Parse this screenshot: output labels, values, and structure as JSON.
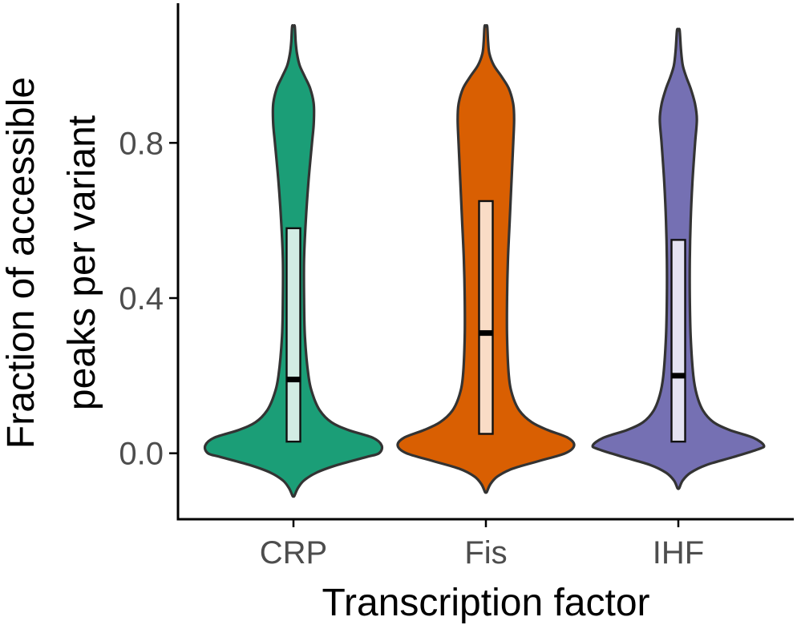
{
  "chart_data": {
    "type": "violin",
    "xlabel": "Transcription factor",
    "ylabel_lines": [
      "Fraction of accessible",
      "peaks per variant"
    ],
    "categories": [
      "CRP",
      "Fis",
      "IHF"
    ],
    "yticks": [
      0.0,
      0.4,
      0.8
    ],
    "ytick_labels": [
      "0.0",
      "0.4",
      "0.8"
    ],
    "ylim": [
      -0.17,
      1.16
    ],
    "grid": false,
    "legend": "none",
    "series": [
      {
        "category": "CRP",
        "color": "#1b9e77",
        "box_fill": "#d2ece4",
        "min": -0.11,
        "max": 1.1,
        "q1": 0.03,
        "median": 0.19,
        "q3": 0.58,
        "density": [
          [
            -0.11,
            0.01
          ],
          [
            -0.09,
            0.05
          ],
          [
            -0.07,
            0.12
          ],
          [
            -0.05,
            0.26
          ],
          [
            -0.03,
            0.5
          ],
          [
            -0.01,
            0.82
          ],
          [
            0.0,
            0.97
          ],
          [
            0.02,
            1.0
          ],
          [
            0.04,
            0.9
          ],
          [
            0.06,
            0.62
          ],
          [
            0.08,
            0.43
          ],
          [
            0.11,
            0.3
          ],
          [
            0.15,
            0.22
          ],
          [
            0.2,
            0.17
          ],
          [
            0.3,
            0.13
          ],
          [
            0.4,
            0.12
          ],
          [
            0.5,
            0.12
          ],
          [
            0.6,
            0.14
          ],
          [
            0.7,
            0.17
          ],
          [
            0.8,
            0.21
          ],
          [
            0.85,
            0.23
          ],
          [
            0.9,
            0.23
          ],
          [
            0.94,
            0.19
          ],
          [
            0.97,
            0.13
          ],
          [
            1.0,
            0.07
          ],
          [
            1.03,
            0.04
          ],
          [
            1.06,
            0.025
          ],
          [
            1.1,
            0.015
          ]
        ]
      },
      {
        "category": "Fis",
        "color": "#d95f02",
        "box_fill": "#f9dcc6",
        "min": -0.1,
        "max": 1.1,
        "q1": 0.05,
        "median": 0.31,
        "q3": 0.65,
        "density": [
          [
            -0.1,
            0.01
          ],
          [
            -0.08,
            0.05
          ],
          [
            -0.06,
            0.13
          ],
          [
            -0.04,
            0.3
          ],
          [
            -0.02,
            0.6
          ],
          [
            0.0,
            0.9
          ],
          [
            0.02,
            1.0
          ],
          [
            0.04,
            0.93
          ],
          [
            0.06,
            0.7
          ],
          [
            0.08,
            0.52
          ],
          [
            0.11,
            0.38
          ],
          [
            0.15,
            0.3
          ],
          [
            0.2,
            0.26
          ],
          [
            0.3,
            0.24
          ],
          [
            0.4,
            0.24
          ],
          [
            0.5,
            0.25
          ],
          [
            0.6,
            0.27
          ],
          [
            0.7,
            0.29
          ],
          [
            0.8,
            0.31
          ],
          [
            0.86,
            0.32
          ],
          [
            0.9,
            0.31
          ],
          [
            0.94,
            0.26
          ],
          [
            0.97,
            0.18
          ],
          [
            1.0,
            0.09
          ],
          [
            1.03,
            0.04
          ],
          [
            1.06,
            0.025
          ],
          [
            1.1,
            0.015
          ]
        ]
      },
      {
        "category": "IHF",
        "color": "#7570b3",
        "box_fill": "#e4e3f2",
        "min": -0.09,
        "max": 1.09,
        "q1": 0.03,
        "median": 0.2,
        "q3": 0.55,
        "density": [
          [
            -0.09,
            0.01
          ],
          [
            -0.07,
            0.05
          ],
          [
            -0.05,
            0.14
          ],
          [
            -0.03,
            0.32
          ],
          [
            -0.01,
            0.62
          ],
          [
            0.01,
            0.9
          ],
          [
            0.02,
            0.97
          ],
          [
            0.04,
            0.85
          ],
          [
            0.06,
            0.58
          ],
          [
            0.08,
            0.4
          ],
          [
            0.11,
            0.28
          ],
          [
            0.15,
            0.21
          ],
          [
            0.2,
            0.17
          ],
          [
            0.3,
            0.14
          ],
          [
            0.4,
            0.13
          ],
          [
            0.5,
            0.13
          ],
          [
            0.6,
            0.14
          ],
          [
            0.7,
            0.16
          ],
          [
            0.8,
            0.19
          ],
          [
            0.86,
            0.21
          ],
          [
            0.9,
            0.19
          ],
          [
            0.94,
            0.14
          ],
          [
            0.97,
            0.09
          ],
          [
            1.0,
            0.05
          ],
          [
            1.04,
            0.03
          ],
          [
            1.09,
            0.015
          ]
        ]
      }
    ]
  }
}
